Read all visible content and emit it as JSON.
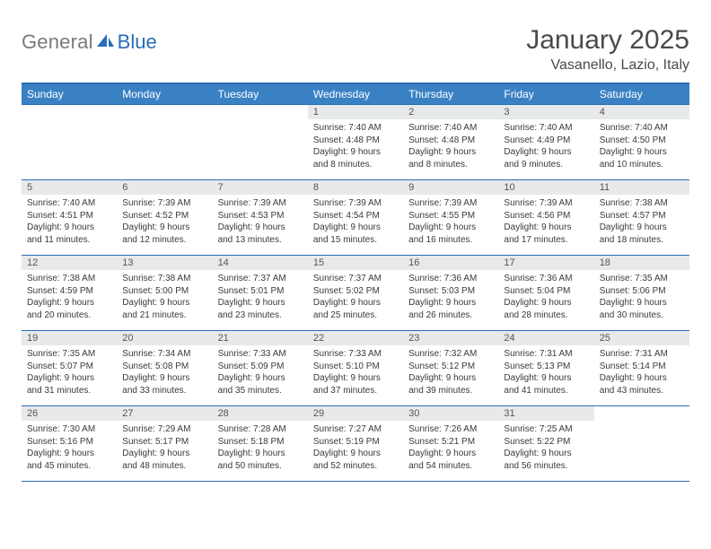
{
  "brand": {
    "part1": "General",
    "part2": "Blue"
  },
  "title": "January 2025",
  "location": "Vasanello, Lazio, Italy",
  "colors": {
    "header_bg": "#3a81c4",
    "header_border": "#2a6db8",
    "daynum_bg": "#e7e9eb",
    "text": "#3a3a3a",
    "title_text": "#4a4a4a",
    "logo_gray": "#7a7a7a",
    "logo_blue": "#2a6db8"
  },
  "weekdays": [
    "Sunday",
    "Monday",
    "Tuesday",
    "Wednesday",
    "Thursday",
    "Friday",
    "Saturday"
  ],
  "weeks": [
    [
      {
        "empty": true
      },
      {
        "empty": true
      },
      {
        "empty": true
      },
      {
        "day": "1",
        "sunrise": "7:40 AM",
        "sunset": "4:48 PM",
        "daylight": "9 hours and 8 minutes."
      },
      {
        "day": "2",
        "sunrise": "7:40 AM",
        "sunset": "4:48 PM",
        "daylight": "9 hours and 8 minutes."
      },
      {
        "day": "3",
        "sunrise": "7:40 AM",
        "sunset": "4:49 PM",
        "daylight": "9 hours and 9 minutes."
      },
      {
        "day": "4",
        "sunrise": "7:40 AM",
        "sunset": "4:50 PM",
        "daylight": "9 hours and 10 minutes."
      }
    ],
    [
      {
        "day": "5",
        "sunrise": "7:40 AM",
        "sunset": "4:51 PM",
        "daylight": "9 hours and 11 minutes."
      },
      {
        "day": "6",
        "sunrise": "7:39 AM",
        "sunset": "4:52 PM",
        "daylight": "9 hours and 12 minutes."
      },
      {
        "day": "7",
        "sunrise": "7:39 AM",
        "sunset": "4:53 PM",
        "daylight": "9 hours and 13 minutes."
      },
      {
        "day": "8",
        "sunrise": "7:39 AM",
        "sunset": "4:54 PM",
        "daylight": "9 hours and 15 minutes."
      },
      {
        "day": "9",
        "sunrise": "7:39 AM",
        "sunset": "4:55 PM",
        "daylight": "9 hours and 16 minutes."
      },
      {
        "day": "10",
        "sunrise": "7:39 AM",
        "sunset": "4:56 PM",
        "daylight": "9 hours and 17 minutes."
      },
      {
        "day": "11",
        "sunrise": "7:38 AM",
        "sunset": "4:57 PM",
        "daylight": "9 hours and 18 minutes."
      }
    ],
    [
      {
        "day": "12",
        "sunrise": "7:38 AM",
        "sunset": "4:59 PM",
        "daylight": "9 hours and 20 minutes."
      },
      {
        "day": "13",
        "sunrise": "7:38 AM",
        "sunset": "5:00 PM",
        "daylight": "9 hours and 21 minutes."
      },
      {
        "day": "14",
        "sunrise": "7:37 AM",
        "sunset": "5:01 PM",
        "daylight": "9 hours and 23 minutes."
      },
      {
        "day": "15",
        "sunrise": "7:37 AM",
        "sunset": "5:02 PM",
        "daylight": "9 hours and 25 minutes."
      },
      {
        "day": "16",
        "sunrise": "7:36 AM",
        "sunset": "5:03 PM",
        "daylight": "9 hours and 26 minutes."
      },
      {
        "day": "17",
        "sunrise": "7:36 AM",
        "sunset": "5:04 PM",
        "daylight": "9 hours and 28 minutes."
      },
      {
        "day": "18",
        "sunrise": "7:35 AM",
        "sunset": "5:06 PM",
        "daylight": "9 hours and 30 minutes."
      }
    ],
    [
      {
        "day": "19",
        "sunrise": "7:35 AM",
        "sunset": "5:07 PM",
        "daylight": "9 hours and 31 minutes."
      },
      {
        "day": "20",
        "sunrise": "7:34 AM",
        "sunset": "5:08 PM",
        "daylight": "9 hours and 33 minutes."
      },
      {
        "day": "21",
        "sunrise": "7:33 AM",
        "sunset": "5:09 PM",
        "daylight": "9 hours and 35 minutes."
      },
      {
        "day": "22",
        "sunrise": "7:33 AM",
        "sunset": "5:10 PM",
        "daylight": "9 hours and 37 minutes."
      },
      {
        "day": "23",
        "sunrise": "7:32 AM",
        "sunset": "5:12 PM",
        "daylight": "9 hours and 39 minutes."
      },
      {
        "day": "24",
        "sunrise": "7:31 AM",
        "sunset": "5:13 PM",
        "daylight": "9 hours and 41 minutes."
      },
      {
        "day": "25",
        "sunrise": "7:31 AM",
        "sunset": "5:14 PM",
        "daylight": "9 hours and 43 minutes."
      }
    ],
    [
      {
        "day": "26",
        "sunrise": "7:30 AM",
        "sunset": "5:16 PM",
        "daylight": "9 hours and 45 minutes."
      },
      {
        "day": "27",
        "sunrise": "7:29 AM",
        "sunset": "5:17 PM",
        "daylight": "9 hours and 48 minutes."
      },
      {
        "day": "28",
        "sunrise": "7:28 AM",
        "sunset": "5:18 PM",
        "daylight": "9 hours and 50 minutes."
      },
      {
        "day": "29",
        "sunrise": "7:27 AM",
        "sunset": "5:19 PM",
        "daylight": "9 hours and 52 minutes."
      },
      {
        "day": "30",
        "sunrise": "7:26 AM",
        "sunset": "5:21 PM",
        "daylight": "9 hours and 54 minutes."
      },
      {
        "day": "31",
        "sunrise": "7:25 AM",
        "sunset": "5:22 PM",
        "daylight": "9 hours and 56 minutes."
      },
      {
        "empty": true
      }
    ]
  ],
  "labels": {
    "sunrise": "Sunrise:",
    "sunset": "Sunset:",
    "daylight": "Daylight:"
  }
}
